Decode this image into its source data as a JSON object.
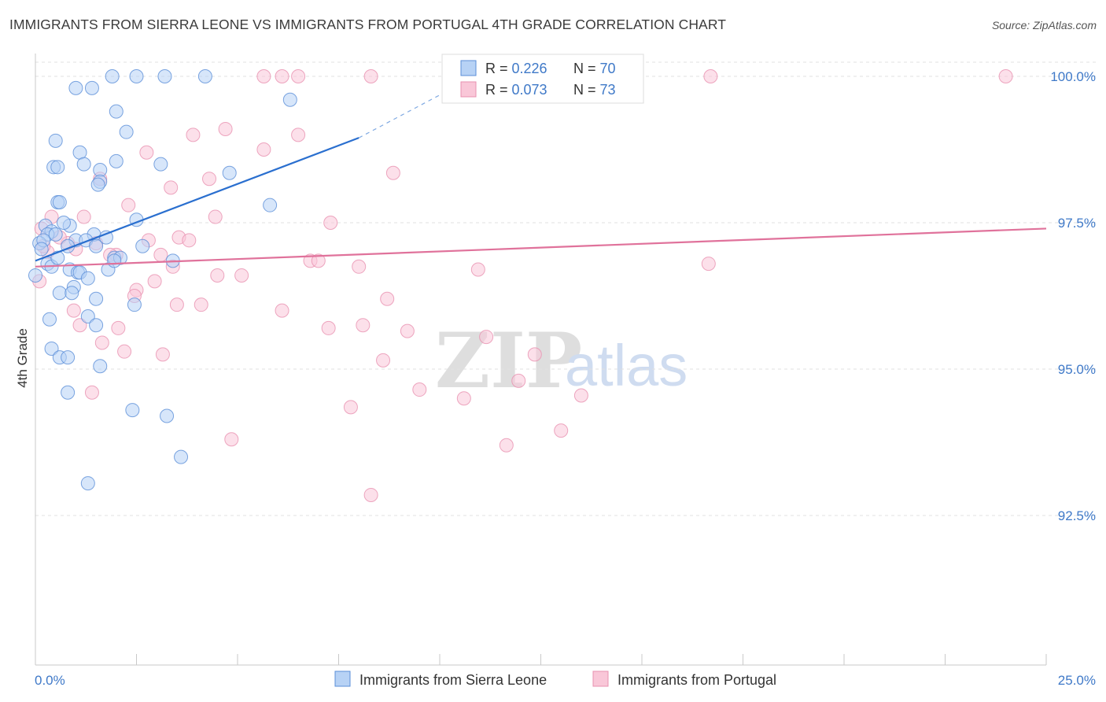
{
  "title": "IMMIGRANTS FROM SIERRA LEONE VS IMMIGRANTS FROM PORTUGAL 4TH GRADE CORRELATION CHART",
  "source": "Source: ZipAtlas.com",
  "watermark": {
    "zip": "ZIP",
    "atlas": "atlas"
  },
  "colors": {
    "blue_fill": "#b7d2f5",
    "blue_stroke": "#5b8fd8",
    "blue_line": "#2a6fcf",
    "pink_fill": "#f9c7d8",
    "pink_stroke": "#e891b0",
    "pink_line": "#e0729b",
    "axis_value": "#3f79c8",
    "grid": "#e1e1e1"
  },
  "legend": {
    "rows": [
      {
        "r_label": "R = ",
        "r_value": "0.226",
        "n_label": "N = ",
        "n_value": "70"
      },
      {
        "r_label": "R = ",
        "r_value": "0.073",
        "n_label": "N = ",
        "n_value": "73"
      }
    ]
  },
  "bottom_legend": [
    "Immigrants from Sierra Leone",
    "Immigrants from Portugal"
  ],
  "chart_data": {
    "type": "scatter",
    "xlabel": "",
    "ylabel": "4th Grade",
    "xlim": [
      0,
      25
    ],
    "ylim": [
      90.0,
      100.2
    ],
    "x_tick_labels": [
      "0.0%",
      "25.0%"
    ],
    "y_ticks": [
      92.5,
      95.0,
      97.5,
      100.0
    ],
    "y_tick_labels": [
      "92.5%",
      "95.0%",
      "97.5%",
      "100.0%"
    ],
    "grid": true,
    "series": [
      {
        "name": "Immigrants from Sierra Leone",
        "color": "blue",
        "trend": {
          "x": [
            0,
            8.0
          ],
          "y": [
            96.85,
            98.95
          ],
          "dashed_to": [
            10.6,
            99.9
          ]
        },
        "points": [
          [
            1.0,
            99.8
          ],
          [
            1.4,
            99.8
          ],
          [
            1.9,
            100.0
          ],
          [
            2.5,
            100.0
          ],
          [
            3.2,
            100.0
          ],
          [
            4.2,
            100.0
          ],
          [
            6.3,
            99.6
          ],
          [
            2.0,
            99.4
          ],
          [
            2.25,
            99.05
          ],
          [
            0.5,
            98.9
          ],
          [
            1.1,
            98.7
          ],
          [
            2.0,
            98.55
          ],
          [
            3.1,
            98.5
          ],
          [
            1.2,
            98.5
          ],
          [
            0.45,
            98.45
          ],
          [
            0.55,
            98.45
          ],
          [
            1.6,
            98.4
          ],
          [
            4.8,
            98.35
          ],
          [
            1.6,
            98.2
          ],
          [
            1.55,
            98.15
          ],
          [
            0.55,
            97.85
          ],
          [
            0.6,
            97.85
          ],
          [
            5.8,
            97.8
          ],
          [
            2.5,
            97.55
          ],
          [
            0.25,
            97.45
          ],
          [
            0.85,
            97.45
          ],
          [
            0.4,
            97.35
          ],
          [
            0.3,
            97.3
          ],
          [
            1.45,
            97.3
          ],
          [
            0.5,
            97.3
          ],
          [
            1.0,
            97.2
          ],
          [
            1.25,
            97.2
          ],
          [
            0.1,
            97.15
          ],
          [
            0.8,
            97.1
          ],
          [
            1.5,
            97.1
          ],
          [
            1.95,
            96.9
          ],
          [
            2.1,
            96.9
          ],
          [
            3.4,
            96.85
          ],
          [
            0.3,
            96.8
          ],
          [
            0.4,
            96.75
          ],
          [
            1.8,
            96.7
          ],
          [
            0.85,
            96.7
          ],
          [
            1.05,
            96.65
          ],
          [
            1.1,
            96.65
          ],
          [
            0.0,
            96.6
          ],
          [
            0.95,
            96.4
          ],
          [
            0.6,
            96.3
          ],
          [
            0.9,
            96.3
          ],
          [
            1.5,
            96.2
          ],
          [
            2.45,
            96.1
          ],
          [
            1.3,
            95.9
          ],
          [
            0.35,
            95.85
          ],
          [
            1.5,
            95.75
          ],
          [
            0.4,
            95.35
          ],
          [
            0.6,
            95.2
          ],
          [
            0.8,
            95.2
          ],
          [
            1.6,
            95.05
          ],
          [
            0.8,
            94.6
          ],
          [
            2.4,
            94.3
          ],
          [
            3.25,
            94.2
          ],
          [
            3.6,
            93.5
          ],
          [
            1.3,
            93.05
          ],
          [
            1.95,
            96.85
          ],
          [
            0.55,
            96.9
          ],
          [
            0.2,
            97.2
          ],
          [
            1.3,
            96.55
          ],
          [
            2.65,
            97.1
          ],
          [
            0.7,
            97.5
          ],
          [
            1.75,
            97.25
          ],
          [
            0.15,
            97.05
          ]
        ]
      },
      {
        "name": "Immigrants from Portugal",
        "color": "pink",
        "trend": {
          "x": [
            0,
            25
          ],
          "y": [
            96.75,
            97.4
          ]
        },
        "points": [
          [
            5.65,
            100.0
          ],
          [
            6.1,
            100.0
          ],
          [
            6.5,
            100.0
          ],
          [
            8.3,
            100.0
          ],
          [
            10.8,
            100.0
          ],
          [
            11.0,
            100.0
          ],
          [
            16.7,
            100.0
          ],
          [
            24.0,
            100.0
          ],
          [
            4.7,
            99.1
          ],
          [
            3.9,
            99.0
          ],
          [
            6.5,
            99.0
          ],
          [
            5.65,
            98.75
          ],
          [
            2.75,
            98.7
          ],
          [
            8.85,
            98.35
          ],
          [
            4.3,
            98.25
          ],
          [
            1.6,
            98.25
          ],
          [
            3.35,
            98.1
          ],
          [
            2.3,
            97.8
          ],
          [
            0.4,
            97.6
          ],
          [
            1.2,
            97.6
          ],
          [
            4.45,
            97.6
          ],
          [
            7.3,
            97.5
          ],
          [
            3.55,
            97.25
          ],
          [
            2.8,
            97.2
          ],
          [
            3.8,
            97.2
          ],
          [
            1.5,
            97.15
          ],
          [
            0.8,
            97.15
          ],
          [
            1.0,
            97.05
          ],
          [
            0.3,
            97.0
          ],
          [
            3.1,
            96.95
          ],
          [
            2.0,
            96.95
          ],
          [
            6.8,
            96.85
          ],
          [
            7.0,
            96.85
          ],
          [
            3.4,
            96.75
          ],
          [
            8.0,
            96.75
          ],
          [
            10.95,
            96.7
          ],
          [
            16.65,
            96.8
          ],
          [
            4.5,
            96.6
          ],
          [
            5.1,
            96.6
          ],
          [
            0.1,
            96.5
          ],
          [
            2.95,
            96.5
          ],
          [
            2.5,
            96.35
          ],
          [
            2.45,
            96.25
          ],
          [
            8.7,
            96.2
          ],
          [
            3.5,
            96.1
          ],
          [
            4.1,
            96.1
          ],
          [
            6.1,
            96.0
          ],
          [
            0.95,
            96.0
          ],
          [
            1.1,
            95.75
          ],
          [
            7.25,
            95.7
          ],
          [
            8.1,
            95.75
          ],
          [
            9.2,
            95.65
          ],
          [
            2.05,
            95.7
          ],
          [
            11.15,
            95.55
          ],
          [
            1.65,
            95.45
          ],
          [
            2.2,
            95.3
          ],
          [
            3.15,
            95.25
          ],
          [
            8.6,
            95.15
          ],
          [
            12.35,
            95.25
          ],
          [
            11.95,
            94.8
          ],
          [
            9.5,
            94.65
          ],
          [
            1.4,
            94.6
          ],
          [
            13.5,
            94.55
          ],
          [
            10.6,
            94.5
          ],
          [
            7.8,
            94.35
          ],
          [
            13.0,
            93.95
          ],
          [
            4.85,
            93.8
          ],
          [
            11.65,
            93.7
          ],
          [
            8.3,
            92.85
          ],
          [
            0.2,
            97.1
          ],
          [
            0.6,
            97.25
          ],
          [
            1.85,
            96.95
          ],
          [
            0.15,
            97.4
          ]
        ]
      }
    ]
  }
}
